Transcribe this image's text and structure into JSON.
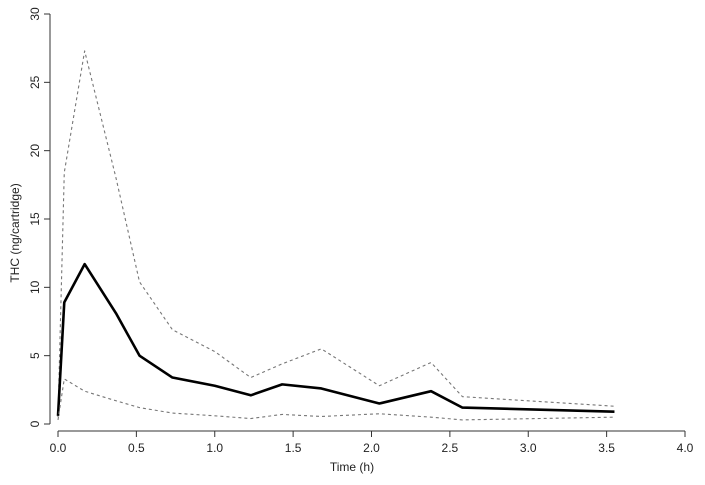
{
  "chart_data": {
    "type": "line",
    "xlabel": "Time (h)",
    "ylabel": "THC (ng/cartridge)",
    "x": [
      0,
      0.04,
      0.17,
      0.37,
      0.52,
      0.73,
      1.0,
      1.23,
      1.43,
      1.68,
      2.05,
      2.38,
      2.58,
      3.55
    ],
    "series": [
      {
        "color": "#777777",
        "dashed": true,
        "values": [
          0.5,
          18.4,
          27.3,
          18,
          10.4,
          6.9,
          5.3,
          3.4,
          4.4,
          5.5,
          2.8,
          4.5,
          2.0,
          1.3
        ]
      },
      {
        "color": "#000000",
        "dashed": false,
        "values": [
          0.6,
          8.9,
          11.7,
          8.1,
          5.0,
          3.4,
          2.8,
          2.1,
          2.9,
          2.6,
          1.5,
          2.4,
          1.2,
          0.9
        ]
      },
      {
        "color": "#777777",
        "dashed": true,
        "values": [
          0.3,
          3.3,
          2.4,
          1.7,
          1.2,
          0.8,
          0.6,
          0.4,
          0.7,
          0.55,
          0.75,
          0.5,
          0.3,
          0.5
        ]
      }
    ],
    "xlim": [
      0,
      4
    ],
    "ylim": [
      0,
      30
    ],
    "xticks": [
      {
        "value": 0,
        "label": "0.0"
      },
      {
        "value": 0.5,
        "label": "0.5"
      },
      {
        "value": 1,
        "label": "1.0"
      },
      {
        "value": 1.5,
        "label": "1.5"
      },
      {
        "value": 2,
        "label": "2.0"
      },
      {
        "value": 2.5,
        "label": "2.5"
      },
      {
        "value": 3,
        "label": "3.0"
      },
      {
        "value": 3.5,
        "label": "3.5"
      },
      {
        "value": 4,
        "label": "4.0"
      }
    ],
    "yticks": [
      0,
      5,
      10,
      15,
      20,
      25,
      30
    ]
  }
}
